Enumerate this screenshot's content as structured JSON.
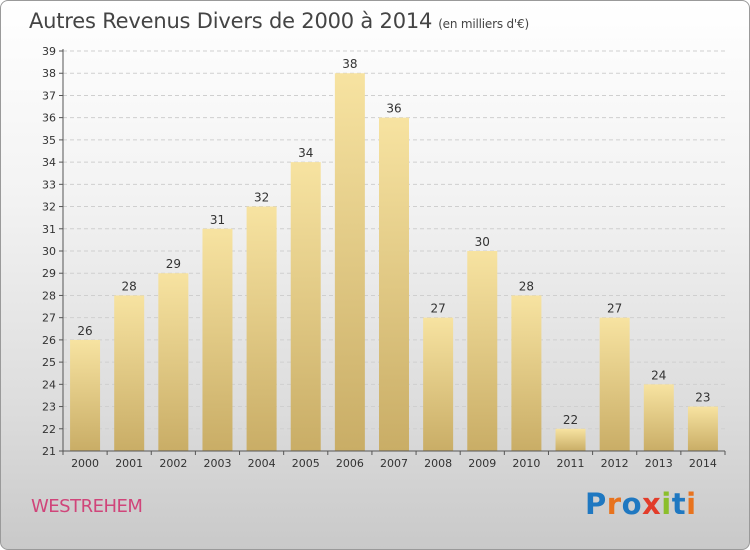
{
  "header": {
    "title": "Autres Revenus Divers de 2000 à 2014",
    "unit": "(en milliers d'€)"
  },
  "footer": {
    "commune": "WESTREHEM",
    "logo_text": "Proxiti"
  },
  "colors": {
    "bar_top": "#f7e3a1",
    "bar_bottom": "#c9ad66",
    "commune": "#d0457a",
    "logo_letters": [
      "#1f78c1",
      "#e8731e",
      "#1f78c1",
      "#e23c2a",
      "#8bbf2c",
      "#1f78c1",
      "#e8731e"
    ]
  },
  "chart_data": {
    "type": "bar",
    "title": "Autres Revenus Divers de 2000 à 2014",
    "xlabel": "",
    "ylabel": "",
    "categories": [
      "2000",
      "2001",
      "2002",
      "2003",
      "2004",
      "2005",
      "2006",
      "2007",
      "2008",
      "2009",
      "2010",
      "2011",
      "2012",
      "2013",
      "2014"
    ],
    "values": [
      26,
      28,
      29,
      31,
      32,
      34,
      38,
      36,
      27,
      30,
      28,
      22,
      27,
      24,
      23
    ],
    "ylim": [
      21,
      39
    ],
    "yticks": [
      21,
      22,
      23,
      24,
      25,
      26,
      27,
      28,
      29,
      30,
      31,
      32,
      33,
      34,
      35,
      36,
      37,
      38,
      39
    ],
    "grid": true,
    "legend": "none"
  }
}
